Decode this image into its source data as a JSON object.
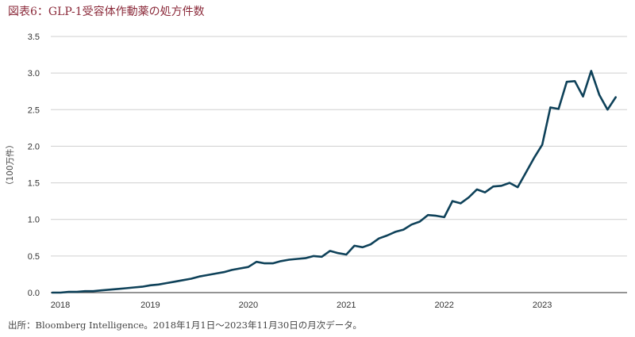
{
  "title": "図表6：GLP-1受容体作動薬の処方件数",
  "source": "出所：Bloomberg Intelligence。2018年1月1日～2023年11月30日の月次データ。",
  "chart_data": {
    "type": "line",
    "ylabel": "（100万件）",
    "xlabel": "",
    "ylim": [
      0,
      3.5
    ],
    "yticks": [
      "0.0",
      "0.5",
      "1.0",
      "1.5",
      "2.0",
      "2.5",
      "3.0",
      "3.5"
    ],
    "xticks": [
      "2018",
      "2019",
      "2020",
      "2021",
      "2022",
      "2023"
    ],
    "grid": "horizontal",
    "line_color": "#0e4159",
    "series": [
      {
        "values": [
          0.0,
          0.0,
          0.01,
          0.01,
          0.02,
          0.02,
          0.03,
          0.04,
          0.05,
          0.06,
          0.07,
          0.08,
          0.1,
          0.11,
          0.13,
          0.15,
          0.17,
          0.19,
          0.22,
          0.24,
          0.26,
          0.28,
          0.31,
          0.33,
          0.35,
          0.42,
          0.4,
          0.4,
          0.43,
          0.45,
          0.46,
          0.47,
          0.5,
          0.49,
          0.57,
          0.54,
          0.52,
          0.64,
          0.62,
          0.66,
          0.74,
          0.78,
          0.83,
          0.86,
          0.93,
          0.97,
          1.06,
          1.05,
          1.03,
          1.25,
          1.22,
          1.3,
          1.41,
          1.37,
          1.45,
          1.46,
          1.5,
          1.44,
          1.64,
          1.84,
          2.02,
          2.53,
          2.51,
          2.88,
          2.89,
          2.68,
          3.03,
          2.7,
          2.5,
          2.67
        ]
      }
    ]
  }
}
